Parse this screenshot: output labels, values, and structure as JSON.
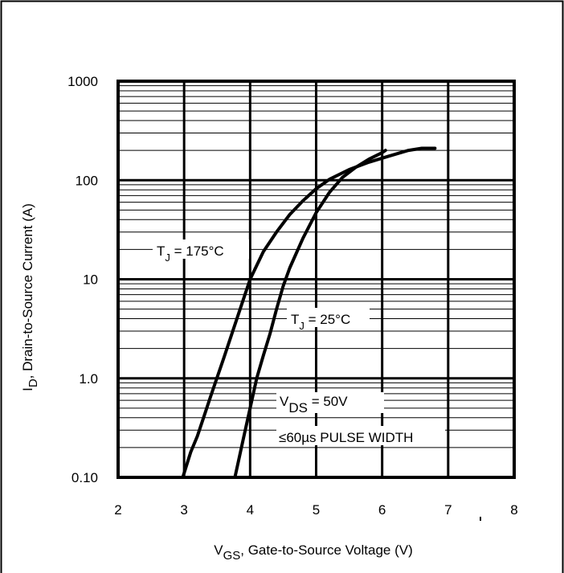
{
  "chart_data": {
    "type": "line",
    "title": "",
    "xlabel": {
      "main": "V",
      "sub": "GS",
      "rest": ", Gate-to-Source Voltage (V)"
    },
    "ylabel": {
      "main": "I",
      "sub": "D",
      "rest": ", Drain-to-Source Current (A)"
    },
    "xlim": [
      2,
      8
    ],
    "ylim": [
      0.1,
      1000
    ],
    "yscale": "log",
    "grid": true,
    "x_ticks": [
      "2",
      "3",
      "4",
      "5",
      "6",
      "7",
      "8"
    ],
    "y_ticks": [
      "0.10",
      "1.0",
      "10",
      "100",
      "1000"
    ],
    "y_tick_values": [
      0.1,
      1,
      10,
      100,
      1000
    ],
    "series": [
      {
        "label": {
          "main": "T",
          "sub": "J",
          "rest": " = 175°C"
        },
        "x": [
          2.98,
          3.1,
          3.2,
          3.4,
          3.6,
          3.8,
          4.0,
          4.2,
          4.4,
          4.6,
          4.8,
          5.0,
          5.2,
          5.5,
          5.8,
          6.1,
          6.4,
          6.6,
          6.8
        ],
        "y": [
          0.1,
          0.18,
          0.26,
          0.65,
          1.6,
          4.0,
          10,
          19,
          30,
          45,
          62,
          82,
          102,
          128,
          152,
          175,
          200,
          210,
          210
        ]
      },
      {
        "label": {
          "main": "T",
          "sub": "J",
          "rest": " = 25°C"
        },
        "x": [
          3.77,
          3.9,
          4.0,
          4.1,
          4.2,
          4.3,
          4.4,
          4.5,
          4.6,
          4.8,
          5.0,
          5.2,
          5.4,
          5.6,
          5.8,
          6.0,
          6.05
        ],
        "y": [
          0.1,
          0.25,
          0.5,
          1.0,
          1.7,
          2.8,
          5.0,
          8.5,
          13,
          26,
          47,
          75,
          107,
          135,
          163,
          190,
          200
        ]
      }
    ],
    "annotations": {
      "condition": {
        "main": "V",
        "sub": "DS",
        "rest": " = 50V"
      },
      "pulse": "≤60µs PULSE WIDTH"
    }
  }
}
